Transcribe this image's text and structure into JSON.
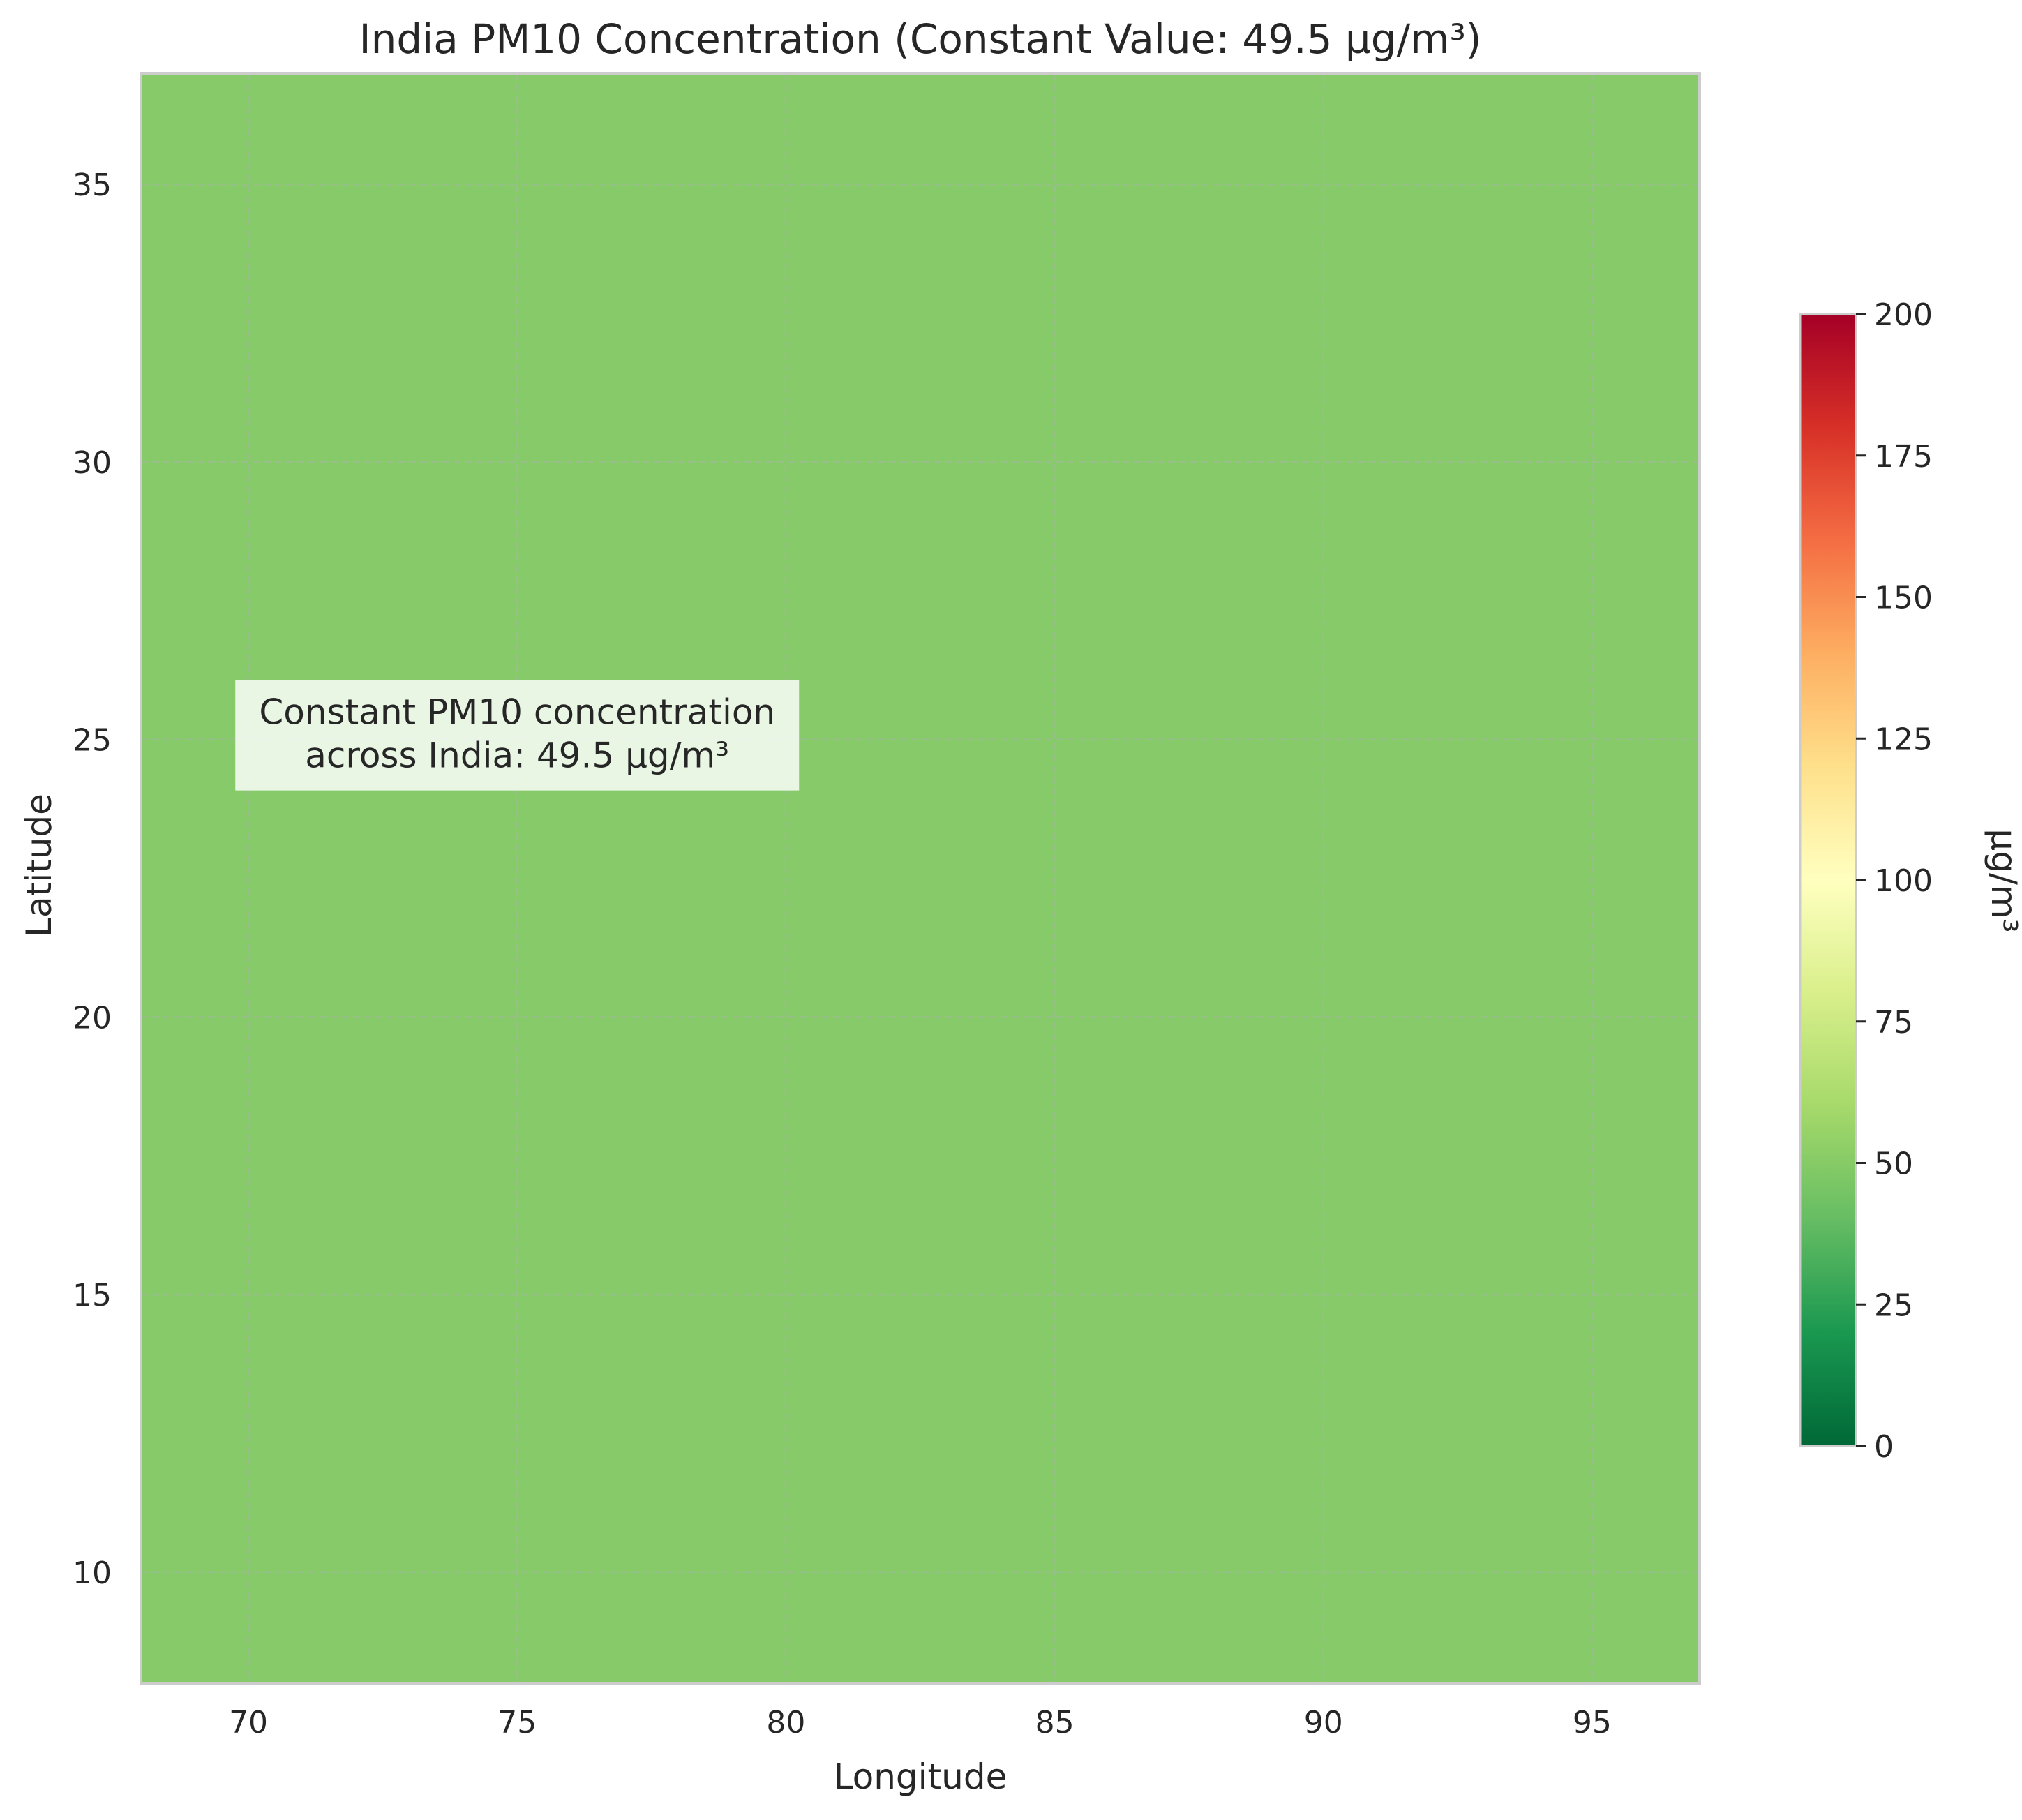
{
  "chart_data": {
    "type": "heatmap",
    "title": "India PM10 Concentration (Constant Value: 49.5 µg/m³)",
    "xlabel": "Longitude",
    "ylabel": "Latitude",
    "xlim": [
      68,
      97
    ],
    "ylim": [
      8,
      37
    ],
    "x_ticks": [
      70,
      75,
      80,
      85,
      90,
      95
    ],
    "y_ticks": [
      10,
      15,
      20,
      25,
      30,
      35
    ],
    "grid": true,
    "value": 49.5,
    "annotation": {
      "lines": [
        "Constant PM10 concentration",
        "across India: 49.5 µg/m³"
      ],
      "x": 75,
      "y": 25
    },
    "colorbar": {
      "label": "µg/m³",
      "min": 0,
      "max": 200,
      "ticks": [
        0,
        25,
        50,
        75,
        100,
        125,
        150,
        175,
        200
      ],
      "colormap": "RdYlGn_r",
      "stops": [
        [
          0.0,
          "#006837"
        ],
        [
          0.1,
          "#1a9850"
        ],
        [
          0.2,
          "#66bd63"
        ],
        [
          0.3,
          "#a6d96a"
        ],
        [
          0.4,
          "#d9ef8b"
        ],
        [
          0.5,
          "#ffffbf"
        ],
        [
          0.6,
          "#fee08b"
        ],
        [
          0.7,
          "#fdae61"
        ],
        [
          0.8,
          "#f46d43"
        ],
        [
          0.9,
          "#d73027"
        ],
        [
          1.0,
          "#a50026"
        ]
      ]
    },
    "fill_color": "#86ca6a"
  }
}
